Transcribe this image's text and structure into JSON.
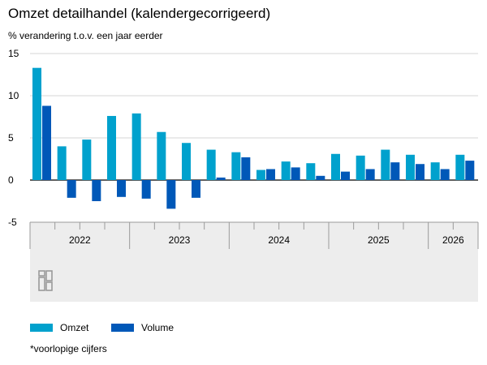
{
  "colors": {
    "omzet": "#00a1cd",
    "volume": "#0058b8",
    "panel": "#ededed"
  },
  "chart_data": {
    "type": "bar",
    "title": "Omzet detailhandel (kalendergecorrigeerd)",
    "subtitle": "% verandering t.o.v. een jaar eerder",
    "ylim": [
      -5,
      15
    ],
    "yticks": [
      "15",
      "10",
      "5",
      "0",
      "-5"
    ],
    "grid": true,
    "legend_position": "bottom-left",
    "groups": [
      {
        "label": "2022",
        "count": 4
      },
      {
        "label": "2023",
        "count": 4
      },
      {
        "label": "2024",
        "count": 4
      },
      {
        "label": "2025",
        "count": 4
      },
      {
        "label": "2026",
        "count": 2
      }
    ],
    "series": [
      {
        "name": "Omzet",
        "color": "#00a1cd",
        "values": [
          13.3,
          4.0,
          4.8,
          7.6,
          7.9,
          5.7,
          4.4,
          3.6,
          3.3,
          1.2,
          2.2,
          2.0,
          3.1,
          2.9,
          3.6,
          3.0,
          2.1,
          3.0
        ]
      },
      {
        "name": "Volume",
        "color": "#0058b8",
        "values": [
          8.8,
          -2.1,
          -2.5,
          -2.0,
          -2.2,
          -3.4,
          -2.1,
          0.3,
          2.7,
          1.3,
          1.5,
          0.5,
          1.0,
          1.3,
          2.1,
          1.9,
          1.3,
          2.3
        ]
      }
    ],
    "footnote": "*voorlopige cijfers"
  }
}
